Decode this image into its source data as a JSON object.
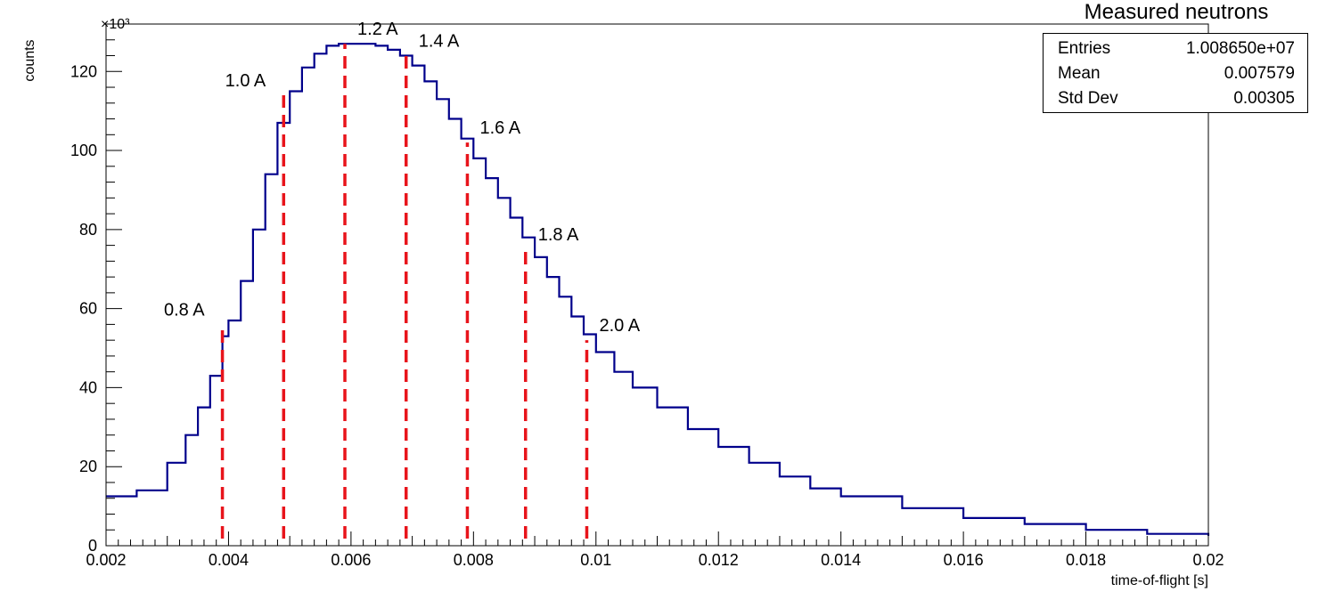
{
  "title": "Measured neutrons",
  "stats": [
    {
      "key": "Entries",
      "value": "1.008650e+07"
    },
    {
      "key": "Mean",
      "value": "0.007579"
    },
    {
      "key": "Std Dev",
      "value": "0.00305"
    }
  ],
  "colors": {
    "histogram": "#00008b",
    "markers": "#e8141b",
    "axis": "#000000"
  },
  "chart_data": {
    "type": "line",
    "style": "step histogram",
    "title": "Measured neutrons",
    "xlabel": "time-of-flight [s]",
    "ylabel": "counts",
    "y_multiplier_label": "×10³",
    "xlim": [
      0.002,
      0.02
    ],
    "ylim": [
      0,
      132
    ],
    "x_ticks": [
      0.002,
      0.004,
      0.006,
      0.008,
      0.01,
      0.012,
      0.014,
      0.016,
      0.018,
      0.02
    ],
    "x_tick_labels": [
      "0.002",
      "0.004",
      "0.006",
      "0.008",
      "0.01",
      "0.012",
      "0.014",
      "0.016",
      "0.018",
      "0.02"
    ],
    "y_ticks": [
      0,
      20,
      40,
      60,
      80,
      100,
      120
    ],
    "y_tick_labels": [
      "0",
      "20",
      "40",
      "60",
      "80",
      "100",
      "120"
    ],
    "grid": false,
    "series": [
      {
        "x": [
          0.002,
          0.0025,
          0.003,
          0.0033,
          0.0035,
          0.0037,
          0.0039,
          0.004,
          0.0042,
          0.0044,
          0.0046,
          0.0048,
          0.005,
          0.0052,
          0.0054,
          0.0056,
          0.0058,
          0.006,
          0.0062,
          0.0064,
          0.0066,
          0.0068,
          0.007,
          0.0072,
          0.0074,
          0.0076,
          0.0078,
          0.008,
          0.0082,
          0.0084,
          0.0086,
          0.0088,
          0.009,
          0.0092,
          0.0094,
          0.0096,
          0.0098,
          0.01,
          0.0103,
          0.0106,
          0.011,
          0.0115,
          0.012,
          0.0125,
          0.013,
          0.0135,
          0.014,
          0.015,
          0.016,
          0.017,
          0.018,
          0.019,
          0.02
        ],
        "y": [
          12.5,
          14,
          21,
          28,
          35,
          43,
          53,
          57,
          67,
          80,
          94,
          107,
          115,
          121,
          124.5,
          126.5,
          127,
          127,
          127,
          126.5,
          125.5,
          124,
          121.5,
          117.5,
          113,
          108,
          103,
          98,
          93,
          88,
          83,
          78,
          73,
          68,
          63,
          58,
          53.5,
          49,
          44,
          40,
          35,
          29.5,
          25,
          21,
          17.5,
          14.5,
          12.5,
          9.5,
          7,
          5.5,
          4,
          3,
          2.5
        ]
      }
    ],
    "markers": [
      {
        "label": "0.8 A",
        "x": 0.0039,
        "y": 56
      },
      {
        "label": "1.0 A",
        "x": 0.0049,
        "y": 114
      },
      {
        "label": "1.2 A",
        "x": 0.0059,
        "y": 127
      },
      {
        "label": "1.4 A",
        "x": 0.0069,
        "y": 124
      },
      {
        "label": "1.6 A",
        "x": 0.0079,
        "y": 102
      },
      {
        "label": "1.8 A",
        "x": 0.00885,
        "y": 75
      },
      {
        "label": "2.0 A",
        "x": 0.00985,
        "y": 52
      }
    ]
  }
}
